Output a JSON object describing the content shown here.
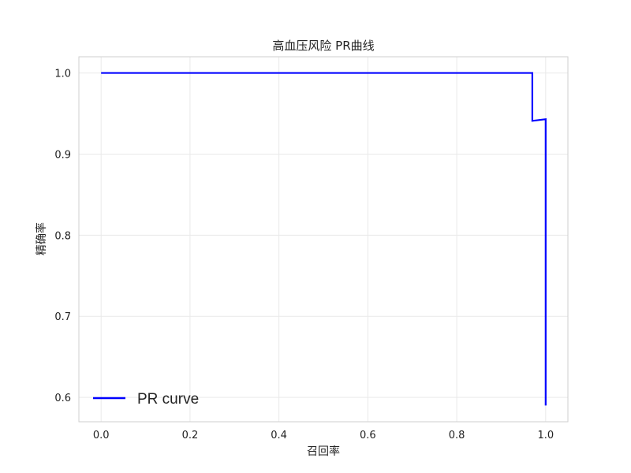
{
  "chart_data": {
    "type": "line",
    "title": "高血压风险 PR曲线",
    "xlabel": "召回率",
    "ylabel": "精确率",
    "xlim": [
      -0.05,
      1.05
    ],
    "ylim": [
      0.57,
      1.02
    ],
    "xticks": [
      0.0,
      0.2,
      0.4,
      0.6,
      0.8,
      1.0
    ],
    "xtick_labels": [
      "0.0",
      "0.2",
      "0.4",
      "0.6",
      "0.8",
      "1.0"
    ],
    "yticks": [
      0.6,
      0.7,
      0.8,
      0.9,
      1.0
    ],
    "ytick_labels": [
      "0.6",
      "0.7",
      "0.8",
      "0.9",
      "1.0"
    ],
    "grid": true,
    "legend_position": "bottom-left",
    "series": [
      {
        "name": "PR curve",
        "color": "#0000ff",
        "x": [
          0.0,
          0.97,
          0.97,
          1.0,
          1.0
        ],
        "y": [
          1.0,
          1.0,
          0.941,
          0.943,
          0.59
        ]
      }
    ]
  }
}
